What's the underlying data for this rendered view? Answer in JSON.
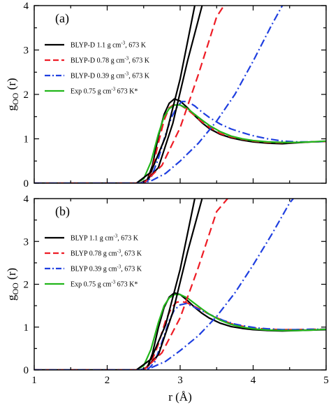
{
  "colors": {
    "black": "#000000",
    "red": "#ee1c25",
    "blue": "#1f3fe0",
    "green": "#22b61b"
  },
  "chart_data": [
    {
      "type": "line",
      "panel_label": "(a)",
      "xlabel": "r (Å)",
      "ylabel": {
        "main": "g",
        "sub": "OO",
        "tail": " (r)"
      },
      "xlim": [
        1,
        5
      ],
      "ylim": [
        0,
        4
      ],
      "xticks": [
        "1",
        "2",
        "3",
        "4",
        "5"
      ],
      "yticks": [
        "0",
        "1",
        "2",
        "3",
        "4"
      ],
      "show_xticklabels": false,
      "legend_position": "top-left",
      "series": [
        {
          "name": "BLYP-D 1.1 g cm⁻³, 673 K",
          "color": "#000000",
          "dash": "solid",
          "x": [
            2.45,
            2.55,
            2.62,
            2.7,
            2.78,
            2.85,
            2.92,
            3.0,
            3.1,
            3.2,
            3.3,
            3.4,
            3.55,
            3.7,
            3.85,
            4.0,
            4.2,
            4.4,
            4.6,
            4.8,
            5.0
          ],
          "y": [
            0.0,
            0.08,
            0.4,
            1.05,
            1.55,
            1.8,
            1.9,
            1.85,
            1.7,
            1.52,
            1.36,
            1.23,
            1.1,
            1.02,
            0.97,
            0.93,
            0.9,
            0.89,
            0.91,
            0.93,
            0.94
          ]
        },
        {
          "name": "BLYP-D 0.78 g cm⁻³, 673 K",
          "color": "#ee1c25",
          "dash": "long",
          "x": [
            2.45,
            2.55,
            2.62,
            2.7,
            2.78,
            2.85,
            2.92,
            3.0,
            3.1,
            3.2,
            3.3,
            3.4,
            3.55,
            3.7,
            3.85,
            4.0,
            4.2,
            4.4,
            4.6,
            4.8,
            5.0
          ],
          "y": [
            0.0,
            0.05,
            0.32,
            0.9,
            1.42,
            1.7,
            1.78,
            1.76,
            1.66,
            1.52,
            1.38,
            1.26,
            1.12,
            1.04,
            0.99,
            0.95,
            0.92,
            0.91,
            0.92,
            0.93,
            0.94
          ]
        },
        {
          "name": "BLYP-D 0.39 g cm⁻³, 673 K",
          "color": "#1f3fe0",
          "dash": "dashdot",
          "x": [
            2.5,
            2.6,
            2.7,
            2.8,
            2.88,
            2.95,
            3.02,
            3.1,
            3.2,
            3.3,
            3.4,
            3.55,
            3.7,
            3.85,
            4.0,
            4.2,
            4.4,
            4.6,
            4.8,
            5.0
          ],
          "y": [
            0.0,
            0.12,
            0.55,
            1.1,
            1.48,
            1.7,
            1.84,
            1.84,
            1.74,
            1.6,
            1.48,
            1.33,
            1.22,
            1.14,
            1.07,
            1.0,
            0.95,
            0.93,
            0.93,
            0.94
          ]
        },
        {
          "name": "Exp 0.75 g cm⁻³ 673 K*",
          "color": "#22b61b",
          "dash": "solid",
          "x": [
            2.4,
            2.5,
            2.6,
            2.7,
            2.78,
            2.85,
            2.92,
            3.0,
            3.1,
            3.2,
            3.3,
            3.4,
            3.55,
            3.7,
            3.85,
            4.0,
            4.2,
            4.4,
            4.6,
            4.8,
            5.0
          ],
          "y": [
            0.0,
            0.1,
            0.48,
            1.1,
            1.5,
            1.68,
            1.76,
            1.76,
            1.68,
            1.55,
            1.42,
            1.3,
            1.16,
            1.06,
            1.0,
            0.96,
            0.93,
            0.92,
            0.92,
            0.93,
            0.95
          ]
        },
        {
          "name": "",
          "color": "#000000",
          "dash": "solid",
          "x": [
            1.0,
            2.4,
            2.6,
            2.8,
            3.0,
            3.2
          ],
          "y": [
            0.0,
            0.0,
            0.25,
            1.05,
            2.35,
            4.0
          ]
        },
        {
          "name": "",
          "color": "#000000",
          "dash": "solid",
          "x": [
            1.0,
            2.5,
            2.7,
            2.9,
            3.1,
            3.3
          ],
          "y": [
            0.0,
            0.0,
            0.35,
            1.35,
            2.75,
            4.0
          ]
        },
        {
          "name": "",
          "color": "#ee1c25",
          "dash": "long",
          "x": [
            1.0,
            2.5,
            2.75,
            3.0,
            3.25,
            3.5,
            3.6
          ],
          "y": [
            0.0,
            0.0,
            0.4,
            1.25,
            2.45,
            3.75,
            4.0
          ]
        },
        {
          "name": "",
          "color": "#1f3fe0",
          "dash": "dashdot",
          "x": [
            1.0,
            2.45,
            2.6,
            2.8,
            3.0,
            3.25,
            3.5,
            3.75,
            4.0,
            4.25,
            4.4
          ],
          "y": [
            0.0,
            0.0,
            0.05,
            0.22,
            0.5,
            0.9,
            1.4,
            2.0,
            2.75,
            3.55,
            4.0
          ]
        }
      ]
    },
    {
      "type": "line",
      "panel_label": "(b)",
      "xlabel": "r (Å)",
      "ylabel": {
        "main": "g",
        "sub": "OO",
        "tail": " (r)"
      },
      "xlim": [
        1,
        5
      ],
      "ylim": [
        0,
        4
      ],
      "xticks": [
        "1",
        "2",
        "3",
        "4",
        "5"
      ],
      "yticks": [
        "0",
        "1",
        "2",
        "3",
        "4"
      ],
      "show_xticklabels": true,
      "legend_position": "top-left",
      "series": [
        {
          "name": "BLYP 1.1 g cm⁻³, 673 K",
          "color": "#000000",
          "dash": "solid",
          "x": [
            2.45,
            2.55,
            2.62,
            2.7,
            2.78,
            2.85,
            2.92,
            3.0,
            3.1,
            3.2,
            3.3,
            3.4,
            3.55,
            3.7,
            3.85,
            4.0,
            4.2,
            4.4,
            4.6,
            4.8,
            5.0
          ],
          "y": [
            0.0,
            0.06,
            0.38,
            0.98,
            1.46,
            1.7,
            1.8,
            1.76,
            1.62,
            1.46,
            1.32,
            1.21,
            1.09,
            1.01,
            0.97,
            0.94,
            0.92,
            0.91,
            0.92,
            0.93,
            0.94
          ]
        },
        {
          "name": "BLYP 0.78 g cm⁻³, 673 K",
          "color": "#ee1c25",
          "dash": "long",
          "x": [
            2.5,
            2.6,
            2.7,
            2.8,
            2.88,
            2.95,
            3.02,
            3.1,
            3.2,
            3.3,
            3.4,
            3.55,
            3.7,
            3.85,
            4.0,
            4.2,
            4.4,
            4.6,
            4.8,
            5.0
          ],
          "y": [
            0.0,
            0.15,
            0.6,
            1.15,
            1.45,
            1.58,
            1.6,
            1.56,
            1.48,
            1.39,
            1.3,
            1.18,
            1.08,
            1.02,
            0.98,
            0.95,
            0.94,
            0.94,
            0.95,
            0.95
          ]
        },
        {
          "name": "BLYP 0.39 g cm⁻³, 673 K",
          "color": "#1f3fe0",
          "dash": "dashdot",
          "x": [
            2.55,
            2.65,
            2.75,
            2.85,
            2.92,
            3.0,
            3.08,
            3.15,
            3.25,
            3.35,
            3.45,
            3.6,
            3.75,
            3.9,
            4.05,
            4.2,
            4.4,
            4.6,
            4.8,
            5.0
          ],
          "y": [
            0.0,
            0.18,
            0.65,
            1.15,
            1.4,
            1.52,
            1.55,
            1.5,
            1.42,
            1.34,
            1.26,
            1.15,
            1.07,
            1.02,
            0.98,
            0.96,
            0.94,
            0.94,
            0.95,
            0.95
          ]
        },
        {
          "name": "Exp 0.75 g cm⁻³ 673 K*",
          "color": "#22b61b",
          "dash": "solid",
          "x": [
            2.4,
            2.5,
            2.6,
            2.7,
            2.78,
            2.85,
            2.92,
            3.0,
            3.1,
            3.2,
            3.3,
            3.4,
            3.55,
            3.7,
            3.85,
            4.0,
            4.2,
            4.4,
            4.6,
            4.8,
            5.0
          ],
          "y": [
            0.0,
            0.1,
            0.48,
            1.1,
            1.5,
            1.68,
            1.76,
            1.76,
            1.68,
            1.55,
            1.42,
            1.3,
            1.16,
            1.06,
            1.0,
            0.96,
            0.93,
            0.92,
            0.92,
            0.93,
            0.95
          ]
        },
        {
          "name": "",
          "color": "#000000",
          "dash": "solid",
          "x": [
            1.0,
            2.4,
            2.6,
            2.8,
            3.0,
            3.2
          ],
          "y": [
            0.0,
            0.0,
            0.25,
            1.05,
            2.35,
            4.0
          ]
        },
        {
          "name": "",
          "color": "#000000",
          "dash": "solid",
          "x": [
            1.0,
            2.5,
            2.7,
            2.9,
            3.1,
            3.3
          ],
          "y": [
            0.0,
            0.0,
            0.35,
            1.35,
            2.75,
            4.0
          ]
        },
        {
          "name": "",
          "color": "#ee1c25",
          "dash": "long",
          "x": [
            1.0,
            2.5,
            2.75,
            3.0,
            3.25,
            3.5,
            3.65
          ],
          "y": [
            0.0,
            0.0,
            0.4,
            1.22,
            2.4,
            3.7,
            4.0
          ]
        },
        {
          "name": "",
          "color": "#1f3fe0",
          "dash": "dashdot",
          "x": [
            1.0,
            2.45,
            2.6,
            2.8,
            3.0,
            3.25,
            3.5,
            3.75,
            4.0,
            4.25,
            4.5,
            4.55
          ],
          "y": [
            0.0,
            0.0,
            0.05,
            0.2,
            0.45,
            0.8,
            1.25,
            1.8,
            2.45,
            3.15,
            3.9,
            4.0
          ]
        }
      ]
    }
  ]
}
